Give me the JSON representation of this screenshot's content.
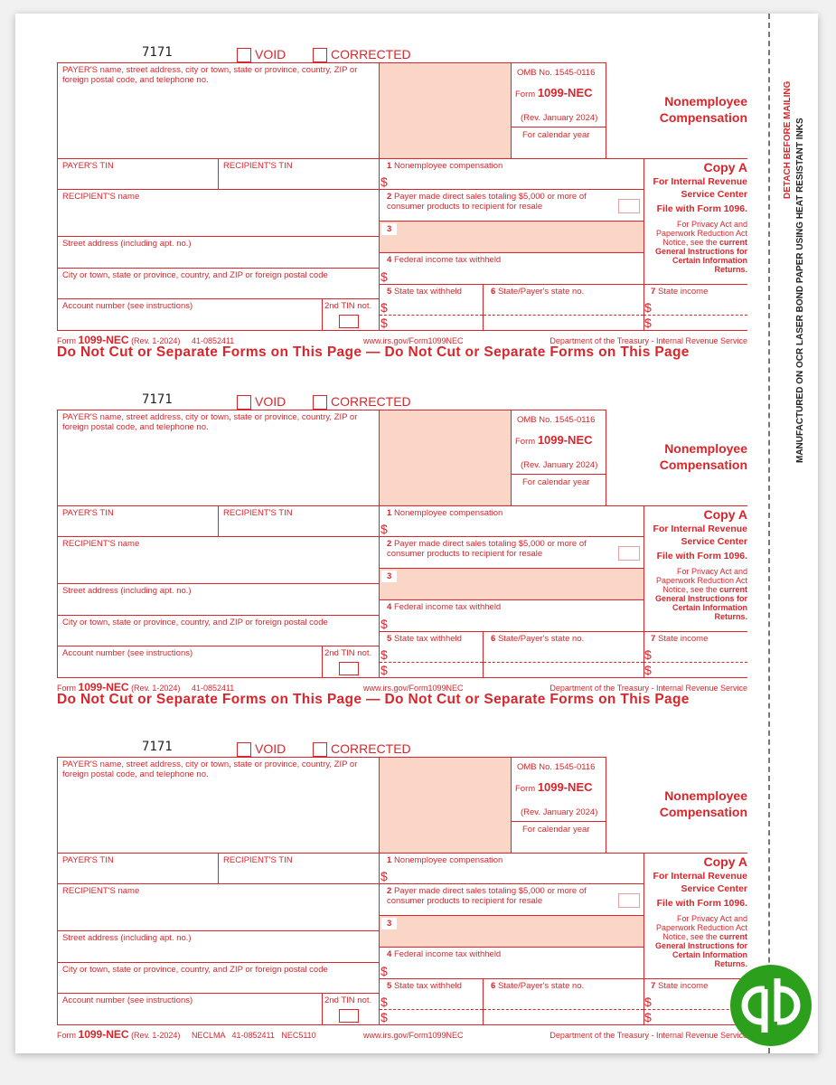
{
  "labels": {
    "form_number": "7171",
    "void": "VOID",
    "corrected": "CORRECTED",
    "payer_box": "PAYER'S name, street address, city or town, state or province, country, ZIP or foreign postal code, and telephone no.",
    "omb": "OMB No. 1545-0116",
    "form_prefix": "Form",
    "form_name": "1099-NEC",
    "rev": "(Rev. January 2024)",
    "calendar_year": "For calendar year",
    "title_line1": "Nonemployee",
    "title_line2": "Compensation",
    "payer_tin": "PAYER'S TIN",
    "recipient_tin": "RECIPIENT'S TIN",
    "recipient_name": "RECIPIENT'S name",
    "street": "Street address (including apt. no.)",
    "city": "City or town, state or province, country, and ZIP or foreign postal code",
    "account": "Account number (see instructions)",
    "second_tin": "2nd TIN not.",
    "box1_num": "1",
    "box1": "Nonemployee compensation",
    "box2_num": "2",
    "box2": "Payer made direct sales totaling $5,000 or more of consumer products to recipient for resale",
    "box3_num": "3",
    "box4_num": "4",
    "box4": "Federal income tax withheld",
    "box5_num": "5",
    "box5": "State tax withheld",
    "box6_num": "6",
    "box6": "State/Payer's state no.",
    "box7_num": "7",
    "box7": "State income",
    "dollar": "$",
    "copy_a": "Copy A",
    "irs_center_1": "For Internal Revenue",
    "irs_center_2": "Service Center",
    "file_with": "File with Form 1096.",
    "privacy_1": "For Privacy Act and",
    "privacy_2": "Paperwork Reduction Act",
    "privacy_3": "Notice, see the",
    "privacy_current": "current",
    "privacy_4": "General Instructions for",
    "privacy_5": "Certain Information",
    "privacy_6": "Returns.",
    "footer_rev": "(Rev. 1-2024)",
    "footer_url": "www.irs.gov/Form1099NEC",
    "footer_dept": "Department of the Treasury - Internal Revenue Service",
    "banner": "Do Not Cut or Separate Forms on This Page — Do Not Cut or Separate Forms on This Page"
  },
  "forms": [
    {
      "footer_codes": "41-0852411",
      "show_banner": true
    },
    {
      "footer_codes": "41-0852411",
      "show_banner": true
    },
    {
      "footer_codes": "NECLMA   41-0852411   NEC5110",
      "show_banner": false
    }
  ],
  "side": {
    "detach": "DETACH BEFORE MAILING",
    "manufactured": "MANUFACTURED ON OCR LASER BOND PAPER USING HEAT RESISTANT INKS"
  },
  "logo": {
    "brand": "qb",
    "color": "#2CA01C"
  },
  "colors": {
    "form_red": "#d9262b",
    "shade": "#fbd5c5"
  }
}
